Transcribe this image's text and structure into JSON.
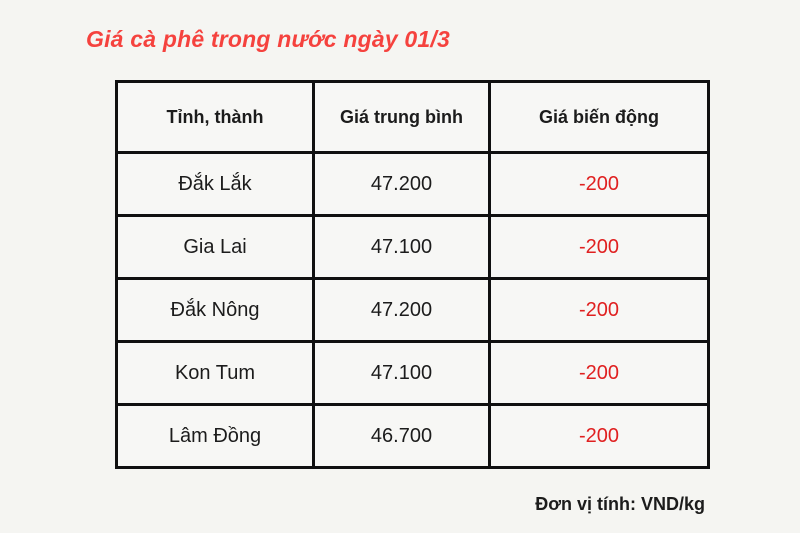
{
  "title": "Giá cà phê trong nước ngày 01/3",
  "footer": "Đơn vị tính: VND/kg",
  "colors": {
    "background": "#f5f5f2",
    "cell_background": "#f7f7f5",
    "border": "#101010",
    "text": "#1c1c1c",
    "title_red": "#f5423e",
    "change_red": "#e02020"
  },
  "table": {
    "headers": [
      "Tỉnh, thành",
      "Giá trung bình",
      "Giá biến động"
    ],
    "rows": [
      {
        "province": "Đắk Lắk",
        "avg_price": "47.200",
        "change": "-200"
      },
      {
        "province": "Gia Lai",
        "avg_price": "47.100",
        "change": "-200"
      },
      {
        "province": "Đắk Nông",
        "avg_price": "47.200",
        "change": "-200"
      },
      {
        "province": "Kon Tum",
        "avg_price": "47.100",
        "change": "-200"
      },
      {
        "province": "Lâm Đồng",
        "avg_price": "46.700",
        "change": "-200"
      }
    ]
  },
  "chart_data": {
    "type": "table",
    "title": "Giá cà phê trong nước ngày 01/3",
    "columns": [
      "Tỉnh, thành",
      "Giá trung bình",
      "Giá biến động"
    ],
    "rows": [
      [
        "Đắk Lắk",
        47200,
        -200
      ],
      [
        "Gia Lai",
        47100,
        -200
      ],
      [
        "Đắk Nông",
        47200,
        -200
      ],
      [
        "Kon Tum",
        47100,
        -200
      ],
      [
        "Lâm Đồng",
        46700,
        -200
      ]
    ],
    "unit": "VND/kg",
    "notes": "Negative change values rendered in red; prices shown with dot thousands separator"
  }
}
